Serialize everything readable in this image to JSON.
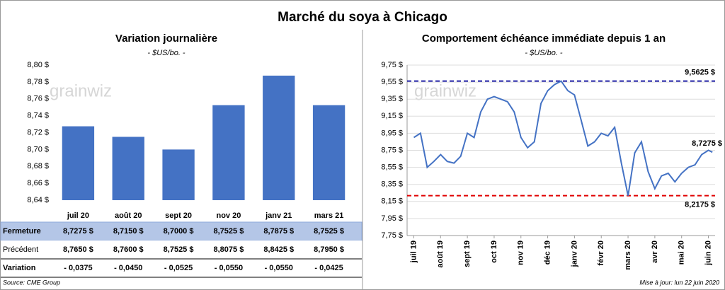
{
  "title": "Marché du soya à Chicago",
  "logo": "grainwiz",
  "source": "Source: CME Group",
  "updated": "Mise à jour: lun 22 juin 2020",
  "chart_data": [
    {
      "type": "bar",
      "title": "Variation journalière",
      "subtitle": "- $US/bo. -",
      "categories": [
        "juil 20",
        "août 20",
        "sept 20",
        "nov 20",
        "janv 21",
        "mars 21"
      ],
      "values": [
        8.7275,
        8.715,
        8.7,
        8.7525,
        8.7875,
        8.7525
      ],
      "color": "#4472c4",
      "grid": false,
      "ylim": [
        8.64,
        8.8
      ],
      "yticks": [
        {
          "value": 8.64,
          "label": "8,64 $"
        },
        {
          "value": 8.66,
          "label": "8,66 $"
        },
        {
          "value": 8.68,
          "label": "8,68 $"
        },
        {
          "value": 8.7,
          "label": "8,70 $"
        },
        {
          "value": 8.72,
          "label": "8,72 $"
        },
        {
          "value": 8.74,
          "label": "8,74 $"
        },
        {
          "value": 8.76,
          "label": "8,76 $"
        },
        {
          "value": 8.78,
          "label": "8,78 $"
        },
        {
          "value": 8.8,
          "label": "8,80 $"
        }
      ]
    },
    {
      "type": "line",
      "title": "Comportement échéance immédiate depuis 1 an",
      "subtitle": "- $US/bo. -",
      "x": [
        0,
        0.25,
        0.5,
        0.75,
        1,
        1.25,
        1.5,
        1.75,
        2,
        2.25,
        2.5,
        2.75,
        3,
        3.25,
        3.5,
        3.75,
        4,
        4.25,
        4.5,
        4.75,
        5,
        5.25,
        5.5,
        5.75,
        6,
        6.25,
        6.5,
        6.75,
        7,
        7.25,
        7.5,
        7.75,
        8,
        8.25,
        8.5,
        8.75,
        9,
        9.25,
        9.5,
        9.75,
        10,
        10.25,
        10.5,
        10.75,
        11,
        11.15
      ],
      "series": [
        {
          "name": "Soya",
          "color": "#4472c4",
          "values": [
            8.9,
            8.95,
            8.55,
            8.62,
            8.7,
            8.62,
            8.6,
            8.68,
            8.95,
            8.9,
            9.2,
            9.35,
            9.38,
            9.35,
            9.32,
            9.2,
            8.9,
            8.78,
            8.85,
            9.3,
            9.45,
            9.52,
            9.5625,
            9.45,
            9.4,
            9.1,
            8.8,
            8.85,
            8.95,
            8.92,
            9.02,
            8.6,
            8.2175,
            8.72,
            8.85,
            8.5,
            8.3,
            8.45,
            8.48,
            8.38,
            8.48,
            8.55,
            8.58,
            8.7,
            8.75,
            8.7275
          ]
        }
      ],
      "xlim": [
        -0.25,
        11.25
      ],
      "xticks": [
        {
          "value": 0,
          "label": "juil 19"
        },
        {
          "value": 1,
          "label": "août 19"
        },
        {
          "value": 2,
          "label": "sept 19"
        },
        {
          "value": 3,
          "label": "oct 19"
        },
        {
          "value": 4,
          "label": "nov 19"
        },
        {
          "value": 5,
          "label": "déc 19"
        },
        {
          "value": 6,
          "label": "janv 20"
        },
        {
          "value": 7,
          "label": "févr 20"
        },
        {
          "value": 8,
          "label": "mars 20"
        },
        {
          "value": 9,
          "label": "avr 20"
        },
        {
          "value": 10,
          "label": "mai 20"
        },
        {
          "value": 11,
          "label": "juin 20"
        }
      ],
      "ylim": [
        7.75,
        9.75
      ],
      "yticks": [
        {
          "value": 7.75,
          "label": "7,75 $"
        },
        {
          "value": 7.95,
          "label": "7,95 $"
        },
        {
          "value": 8.15,
          "label": "8,15 $"
        },
        {
          "value": 8.35,
          "label": "8,35 $"
        },
        {
          "value": 8.55,
          "label": "8,55 $"
        },
        {
          "value": 8.75,
          "label": "8,75 $"
        },
        {
          "value": 8.95,
          "label": "8,95 $"
        },
        {
          "value": 9.15,
          "label": "9,15 $"
        },
        {
          "value": 9.35,
          "label": "9,35 $"
        },
        {
          "value": 9.55,
          "label": "9,55 $"
        },
        {
          "value": 9.75,
          "label": "9,75 $"
        }
      ],
      "grid": true,
      "hlines": [
        {
          "value": 9.5625,
          "label": "9,5625 $",
          "color": "#2020a8"
        },
        {
          "value": 8.2175,
          "label": "8,2175 $",
          "color": "#e00000"
        }
      ],
      "annotations": [
        {
          "value": 8.7275,
          "label": "8,7275 $"
        }
      ]
    }
  ],
  "table": {
    "rows": [
      {
        "label": "Fermeture",
        "cells": [
          "8,7275 $",
          "8,7150 $",
          "8,7000 $",
          "8,7525 $",
          "8,7875 $",
          "8,7525 $"
        ],
        "background": "#b4c6e7",
        "color": "#000000"
      },
      {
        "label": "Précédent",
        "cells": [
          "8,7650 $",
          "8,7600 $",
          "8,7525 $",
          "8,8075 $",
          "8,8425 $",
          "8,7950 $"
        ],
        "background": "#ffffff",
        "color": "#000000"
      },
      {
        "label": "Variation",
        "cells": [
          "- 0,0375",
          "- 0,0450",
          "- 0,0525",
          "- 0,0550",
          "- 0,0550",
          "- 0,0425"
        ],
        "background": "#ffffff",
        "color": "#e00000"
      }
    ]
  }
}
